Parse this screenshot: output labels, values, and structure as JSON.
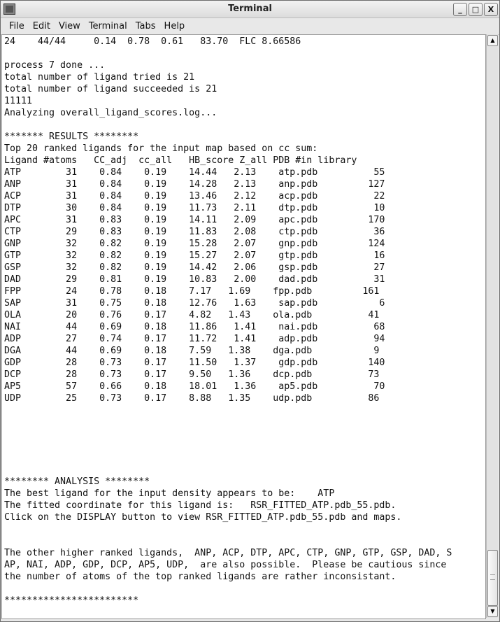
{
  "window": {
    "title": "Terminal",
    "minimize_label": "_",
    "maximize_label": "□",
    "close_label": "X"
  },
  "menu": [
    {
      "label": "File"
    },
    {
      "label": "Edit"
    },
    {
      "label": "View"
    },
    {
      "label": "Terminal"
    },
    {
      "label": "Tabs"
    },
    {
      "label": "Help"
    }
  ],
  "terminal": {
    "lines": [
      "24    44/44     0.14  0.78  0.61   83.70  FLC 8.66586",
      "",
      "process 7 done ...",
      "total number of ligand tried is 21",
      "total number of ligand succeeded is 21",
      "11111",
      "Analyzing overall_ligand_scores.log...",
      "",
      "******* RESULTS ********",
      "Top 20 ranked ligands for the input map based on cc sum:",
      "Ligand #atoms   CC_adj  cc_all   HB_score Z_all PDB #in library",
      "ATP        31    0.84    0.19    14.44   2.13    atp.pdb          55",
      "ANP        31    0.84    0.19    14.28   2.13    anp.pdb         127",
      "ACP        31    0.84    0.19    13.46   2.12    acp.pdb          22",
      "DTP        30    0.84    0.19    11.73   2.11    dtp.pdb          10",
      "APC        31    0.83    0.19    14.11   2.09    apc.pdb         170",
      "CTP        29    0.83    0.19    11.83   2.08    ctp.pdb          36",
      "GNP        32    0.82    0.19    15.28   2.07    gnp.pdb         124",
      "GTP        32    0.82    0.19    15.27   2.07    gtp.pdb          16",
      "GSP        32    0.82    0.19    14.42   2.06    gsp.pdb          27",
      "DAD        29    0.81    0.19    10.83   2.00    dad.pdb          31",
      "FPP        24    0.78    0.18    7.17   1.69    fpp.pdb         161",
      "SAP        31    0.75    0.18    12.76   1.63    sap.pdb           6",
      "OLA        20    0.76    0.17    4.82   1.43    ola.pdb          41",
      "NAI        44    0.69    0.18    11.86   1.41    nai.pdb          68",
      "ADP        27    0.74    0.17    11.72   1.41    adp.pdb          94",
      "DGA        44    0.69    0.18    7.59   1.38    dga.pdb           9",
      "GDP        28    0.73    0.17    11.50   1.37    gdp.pdb         140",
      "DCP        28    0.73    0.17    9.50   1.36    dcp.pdb          73",
      "AP5        57    0.66    0.18    18.01   1.36    ap5.pdb          70",
      "UDP        25    0.73    0.17    8.88   1.35    udp.pdb          86",
      "",
      "",
      "",
      "",
      "",
      "",
      "******** ANALYSIS ********",
      "The best ligand for the input density appears to be:    ATP",
      "The fitted coordinate for this ligand is:   RSR_FITTED_ATP.pdb_55.pdb.",
      "Click on the DISPLAY button to view RSR_FITTED_ATP.pdb_55.pdb and maps.",
      "",
      "",
      "The other higher ranked ligands,  ANP, ACP, DTP, APC, CTP, GNP, GTP, GSP, DAD, S",
      "AP, NAI, ADP, GDP, DCP, AP5, UDP,  are also possible.  Please be cautious since",
      "the number of atoms of the top ranked ligands are rather inconsistant.",
      "",
      "************************"
    ]
  },
  "scrollbar": {
    "position_fraction": 1.0
  }
}
